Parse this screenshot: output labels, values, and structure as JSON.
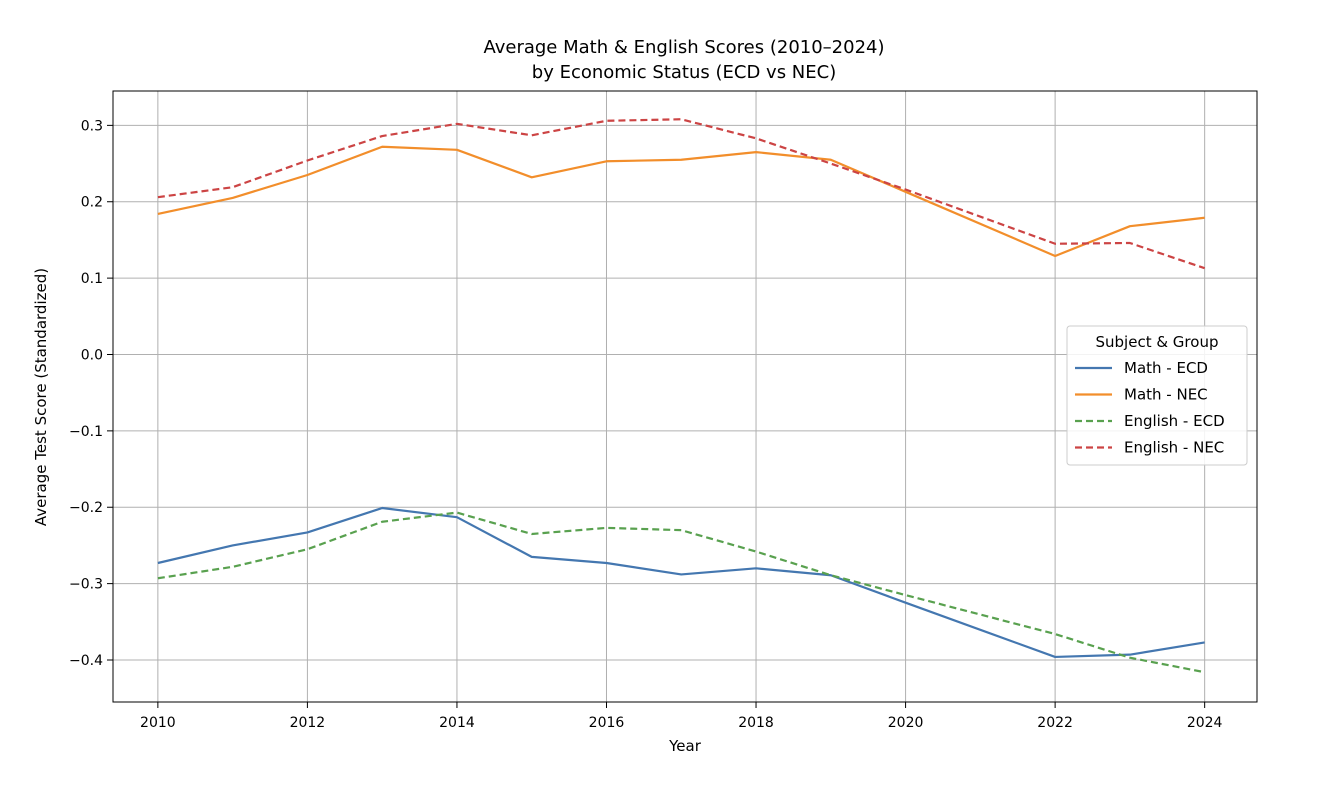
{
  "chart_data": {
    "type": "line",
    "title": "Average Math & English Scores (2010–2024)",
    "subtitle": "by Economic Status (ECD vs NEC)",
    "xlabel": "Year",
    "ylabel": "Average Test Score (Standardized)",
    "xlim": [
      2009.4,
      2024.7
    ],
    "ylim": [
      -0.455,
      0.345
    ],
    "xticks": [
      2010,
      2012,
      2014,
      2016,
      2018,
      2020,
      2022,
      2024
    ],
    "xtick_labels": [
      "2010",
      "2012",
      "2014",
      "2016",
      "2018",
      "2020",
      "2022",
      "2024"
    ],
    "yticks": [
      0.3,
      0.2,
      0.1,
      0.0,
      -0.1,
      -0.2,
      -0.3,
      -0.4
    ],
    "ytick_labels": [
      "0.3",
      "0.2",
      "0.1",
      "0.0",
      "−0.1",
      "−0.2",
      "−0.3",
      "−0.4"
    ],
    "grid": true,
    "legend_title": "Subject & Group",
    "legend_position": "center-right",
    "x": [
      2010,
      2011,
      2012,
      2013,
      2014,
      2015,
      2016,
      2017,
      2018,
      2019,
      2020,
      2022,
      2023,
      2024
    ],
    "series": [
      {
        "name": "Math - ECD",
        "color": "#4477b0",
        "style": "solid",
        "values": [
          -0.273,
          -0.25,
          -0.233,
          -0.201,
          -0.213,
          -0.265,
          -0.273,
          -0.288,
          -0.28,
          -0.289,
          -0.325,
          -0.396,
          -0.393,
          -0.377
        ]
      },
      {
        "name": "Math - NEC",
        "color": "#f28e2b",
        "style": "solid",
        "values": [
          0.184,
          0.205,
          0.235,
          0.272,
          0.268,
          0.232,
          0.253,
          0.255,
          0.265,
          0.255,
          0.213,
          0.129,
          0.168,
          0.179
        ]
      },
      {
        "name": "English - ECD",
        "color": "#59a14f",
        "style": "dashed",
        "values": [
          -0.293,
          -0.278,
          -0.255,
          -0.219,
          -0.207,
          -0.235,
          -0.227,
          -0.23,
          -0.258,
          -0.289,
          -0.315,
          -0.366,
          -0.397,
          -0.416
        ]
      },
      {
        "name": "English - NEC",
        "color": "#cc4444",
        "style": "dashed",
        "values": [
          0.206,
          0.219,
          0.254,
          0.286,
          0.302,
          0.287,
          0.306,
          0.308,
          0.283,
          0.25,
          0.216,
          0.145,
          0.146,
          0.113
        ]
      }
    ]
  }
}
